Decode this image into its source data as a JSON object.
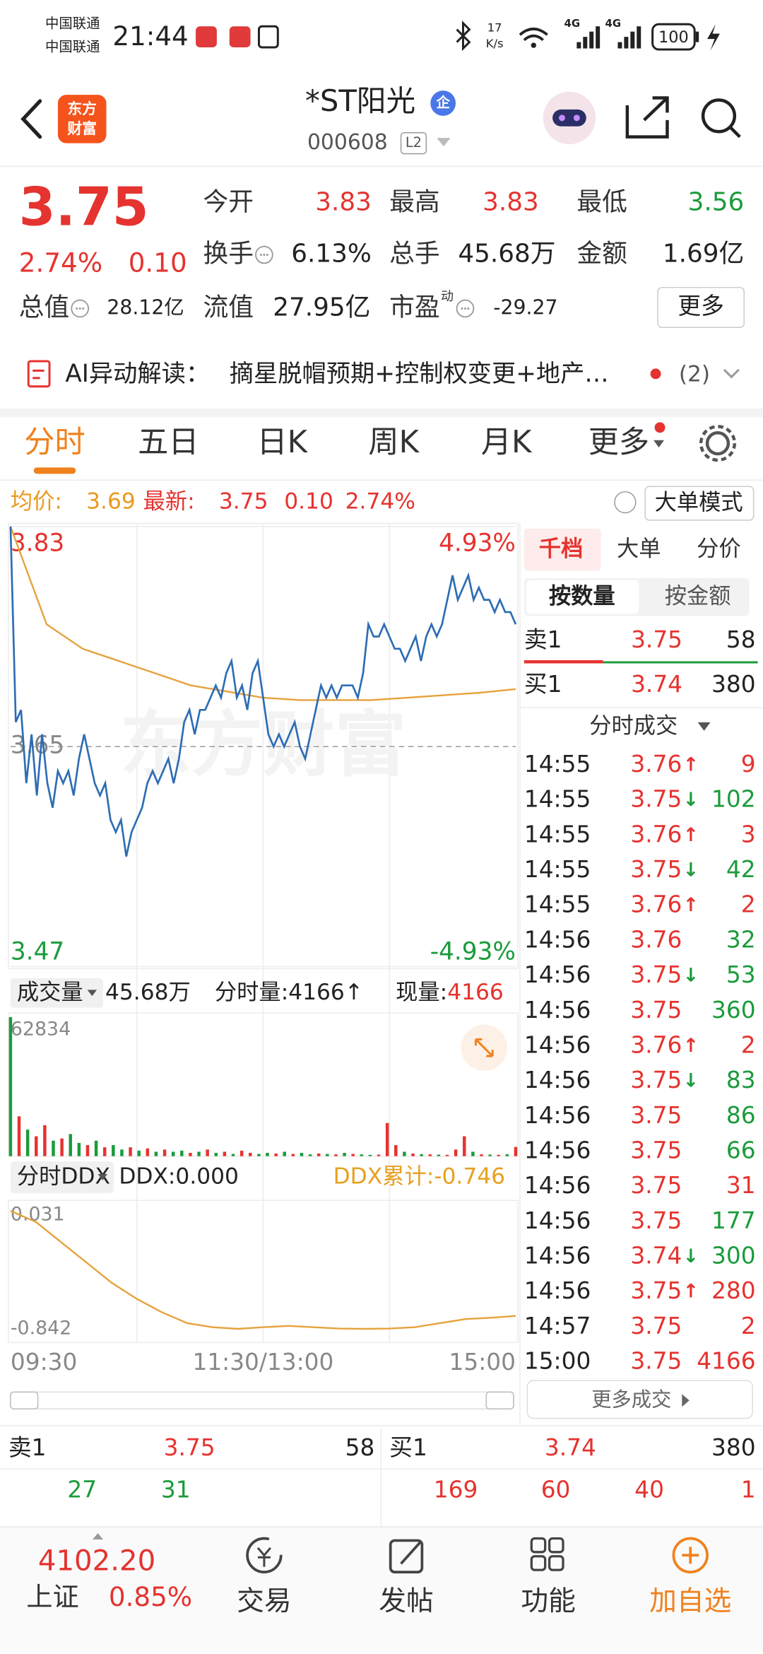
{
  "status_bar": {
    "carriers": [
      "中国联通",
      "中国联通"
    ],
    "time": "21:44",
    "speed": [
      "17",
      "K/s"
    ],
    "network": [
      "4G",
      "4G"
    ],
    "battery": "100"
  },
  "header": {
    "logo": [
      "东方",
      "财富"
    ],
    "title": "*ST阳光",
    "badge": "企",
    "code": "000608",
    "level": "L2"
  },
  "quote": {
    "price": "3.75",
    "change_pct": "2.74%",
    "change": "0.10",
    "stats": [
      {
        "label": "今开",
        "value": "3.83",
        "color": "#e5332f"
      },
      {
        "label": "最高",
        "value": "3.83",
        "color": "#e5332f"
      },
      {
        "label": "最低",
        "value": "3.56",
        "color": "#1b9b3b"
      },
      {
        "label": "换手",
        "value": "6.13%",
        "color": "#222222",
        "info": true
      },
      {
        "label": "总手",
        "value": "45.68万",
        "color": "#222222"
      },
      {
        "label": "金额",
        "value": "1.69亿",
        "color": "#222222"
      },
      {
        "label": "总值",
        "value": "28.12亿",
        "color": "#222222",
        "info": true
      },
      {
        "label": "流值",
        "value": "27.95亿",
        "color": "#222222"
      },
      {
        "label": "市盈",
        "sup": "动",
        "value": "-29.27",
        "color": "#222222",
        "info": true
      }
    ],
    "more": "更多"
  },
  "ai": {
    "label": "AI异动解读：",
    "text": "摘星脱帽预期+控制权变更+地产…",
    "count": "(2)"
  },
  "tabs": [
    "分时",
    "五日",
    "日K",
    "周K",
    "月K",
    "更多"
  ],
  "info_bar": {
    "avg_label": "均价:",
    "avg": "3.69",
    "latest_label": "最新:",
    "latest": "3.75",
    "change": "0.10",
    "change_pct": "2.74%",
    "mode": "大单模式"
  },
  "intraday": {
    "watermark": "东方财富",
    "ylim": [
      3.47,
      3.83
    ],
    "yticks": [
      3.83,
      3.65,
      3.47
    ],
    "pct_labels": [
      "4.93%",
      "-4.93%"
    ],
    "price_color": "#2e6db4",
    "avg_color": "#e6a23c",
    "price": [
      3.83,
      3.67,
      3.68,
      3.62,
      3.66,
      3.61,
      3.66,
      3.62,
      3.6,
      3.63,
      3.62,
      3.63,
      3.61,
      3.64,
      3.66,
      3.64,
      3.62,
      3.61,
      3.62,
      3.59,
      3.58,
      3.59,
      3.56,
      3.58,
      3.59,
      3.6,
      3.62,
      3.63,
      3.62,
      3.63,
      3.64,
      3.62,
      3.64,
      3.67,
      3.68,
      3.66,
      3.68,
      3.68,
      3.69,
      3.7,
      3.69,
      3.71,
      3.72,
      3.69,
      3.7,
      3.68,
      3.71,
      3.72,
      3.69,
      3.66,
      3.65,
      3.66,
      3.65,
      3.66,
      3.67,
      3.65,
      3.64,
      3.66,
      3.68,
      3.7,
      3.69,
      3.7,
      3.69,
      3.7,
      3.7,
      3.7,
      3.69,
      3.71,
      3.75,
      3.74,
      3.74,
      3.75,
      3.74,
      3.73,
      3.73,
      3.72,
      3.73,
      3.74,
      3.72,
      3.74,
      3.75,
      3.74,
      3.75,
      3.77,
      3.79,
      3.77,
      3.78,
      3.79,
      3.77,
      3.78,
      3.77,
      3.77,
      3.76,
      3.77,
      3.76,
      3.76,
      3.75
    ],
    "avg": [
      3.83,
      3.75,
      3.73,
      3.72,
      3.71,
      3.7,
      3.695,
      3.69,
      3.688,
      3.688,
      3.688,
      3.69,
      3.692,
      3.694,
      3.697
    ],
    "xticks": [
      "09:30",
      "11:30/13:00",
      "15:00"
    ]
  },
  "volume": {
    "label": "成交量",
    "total": "45.68万",
    "minute_label": "分时量:",
    "minute": "4166↑",
    "now_label": "现量:",
    "now": "4166",
    "ylim": [
      0,
      62834
    ],
    "yticks": [
      62834
    ],
    "values": [
      62834,
      18000,
      12000,
      9000,
      14000,
      7000,
      8000,
      10000,
      6000,
      5000,
      7000,
      4000,
      5000,
      3000,
      4000,
      2500,
      3500,
      2000,
      3000,
      2000,
      2500,
      1500,
      2000,
      3000,
      1500,
      2000,
      1000,
      2500,
      1500,
      1000,
      1500,
      1200,
      2000,
      1000,
      1500,
      800,
      1200,
      1000,
      800,
      1500,
      1000,
      800,
      600,
      700,
      15000,
      5000,
      2000,
      1200,
      900,
      800,
      700,
      600,
      3000,
      9000,
      2000,
      800,
      700,
      600,
      900,
      4166
    ],
    "colors": [
      "#1b9b3b",
      "#e5332f",
      "#1b9b3b",
      "#e5332f",
      "#e5332f",
      "#1b9b3b",
      "#e5332f",
      "#1b9b3b",
      "#1b9b3b",
      "#e5332f",
      "#1b9b3b",
      "#e5332f",
      "#1b9b3b",
      "#1b9b3b",
      "#e5332f",
      "#1b9b3b",
      "#e5332f",
      "#1b9b3b",
      "#e5332f",
      "#1b9b3b",
      "#1b9b3b",
      "#e5332f",
      "#1b9b3b",
      "#e5332f",
      "#1b9b3b",
      "#e5332f",
      "#1b9b3b",
      "#e5332f",
      "#e5332f",
      "#1b9b3b",
      "#1b9b3b",
      "#e5332f",
      "#1b9b3b",
      "#e5332f",
      "#1b9b3b",
      "#1b9b3b",
      "#e5332f",
      "#1b9b3b",
      "#e5332f",
      "#1b9b3b",
      "#e5332f",
      "#1b9b3b",
      "#1b9b3b",
      "#e5332f",
      "#e5332f",
      "#e5332f",
      "#1b9b3b",
      "#e5332f",
      "#1b9b3b",
      "#e5332f",
      "#1b9b3b",
      "#e5332f",
      "#e5332f",
      "#e5332f",
      "#1b9b3b",
      "#e5332f",
      "#1b9b3b",
      "#e5332f",
      "#1b9b3b",
      "#e5332f"
    ]
  },
  "ddx": {
    "label": "分时DDX",
    "value": "DDX:0.000",
    "cum": "DDX累计:-0.746",
    "ylim": [
      -0.842,
      0.031
    ],
    "yticks": [
      0.031,
      -0.842
    ],
    "color": "#e6a23c",
    "values": [
      0.031,
      -0.05,
      -0.2,
      -0.35,
      -0.5,
      -0.62,
      -0.72,
      -0.8,
      -0.83,
      -0.842,
      -0.83,
      -0.82,
      -0.83,
      -0.84,
      -0.842,
      -0.84,
      -0.83,
      -0.8,
      -0.77,
      -0.76,
      -0.746
    ]
  },
  "right_panel": {
    "tabs": [
      "千档",
      "大单",
      "分价"
    ],
    "subtabs": [
      "按数量",
      "按金额"
    ],
    "book": [
      {
        "side": "卖1",
        "price": "3.75",
        "volume": "58"
      },
      {
        "side": "买1",
        "price": "3.74",
        "volume": "380"
      }
    ],
    "trades_title": "分时成交",
    "trades": [
      {
        "time": "14:55",
        "price": "3.76",
        "arrow": "↑",
        "volume": "9",
        "color": "#e5332f"
      },
      {
        "time": "14:55",
        "price": "3.75",
        "arrow": "↓",
        "volume": "102",
        "color": "#1b9b3b"
      },
      {
        "time": "14:55",
        "price": "3.76",
        "arrow": "↑",
        "volume": "3",
        "color": "#e5332f"
      },
      {
        "time": "14:55",
        "price": "3.75",
        "arrow": "↓",
        "volume": "42",
        "color": "#1b9b3b"
      },
      {
        "time": "14:55",
        "price": "3.76",
        "arrow": "↑",
        "volume": "2",
        "color": "#e5332f"
      },
      {
        "time": "14:56",
        "price": "3.76",
        "volume": "32",
        "color": "#1b9b3b"
      },
      {
        "time": "14:56",
        "price": "3.75",
        "arrow": "↓",
        "volume": "53",
        "color": "#1b9b3b"
      },
      {
        "time": "14:56",
        "price": "3.75",
        "volume": "360",
        "color": "#1b9b3b"
      },
      {
        "time": "14:56",
        "price": "3.76",
        "arrow": "↑",
        "volume": "2",
        "color": "#e5332f"
      },
      {
        "time": "14:56",
        "price": "3.75",
        "arrow": "↓",
        "volume": "83",
        "color": "#1b9b3b"
      },
      {
        "time": "14:56",
        "price": "3.75",
        "volume": "86",
        "color": "#1b9b3b"
      },
      {
        "time": "14:56",
        "price": "3.75",
        "volume": "66",
        "color": "#1b9b3b"
      },
      {
        "time": "14:56",
        "price": "3.75",
        "volume": "31",
        "color": "#e5332f"
      },
      {
        "time": "14:56",
        "price": "3.75",
        "volume": "177",
        "color": "#1b9b3b"
      },
      {
        "time": "14:56",
        "price": "3.74",
        "arrow": "↓",
        "volume": "300",
        "color": "#1b9b3b"
      },
      {
        "time": "14:56",
        "price": "3.75",
        "arrow": "↑",
        "volume": "280",
        "color": "#e5332f"
      },
      {
        "time": "14:57",
        "price": "3.75",
        "volume": "2",
        "color": "#e5332f"
      },
      {
        "time": "15:00",
        "price": "3.75",
        "volume": "4166",
        "color": "#e5332f"
      }
    ],
    "more": "更多成交"
  },
  "bottom_book": [
    {
      "label": "卖1",
      "price": "3.75",
      "volume": "58",
      "queue": [
        "27",
        "31"
      ],
      "queue_color": "#1b9b3b"
    },
    {
      "label": "买1",
      "price": "3.74",
      "volume": "380",
      "queue": [
        "169",
        "60",
        "40",
        "1"
      ],
      "queue_color": "#e5332f"
    }
  ],
  "nav": {
    "index_value": "4102.20",
    "index_name": "上证",
    "index_change": "0.85%",
    "items": [
      "交易",
      "发帖",
      "功能",
      "加自选"
    ]
  }
}
